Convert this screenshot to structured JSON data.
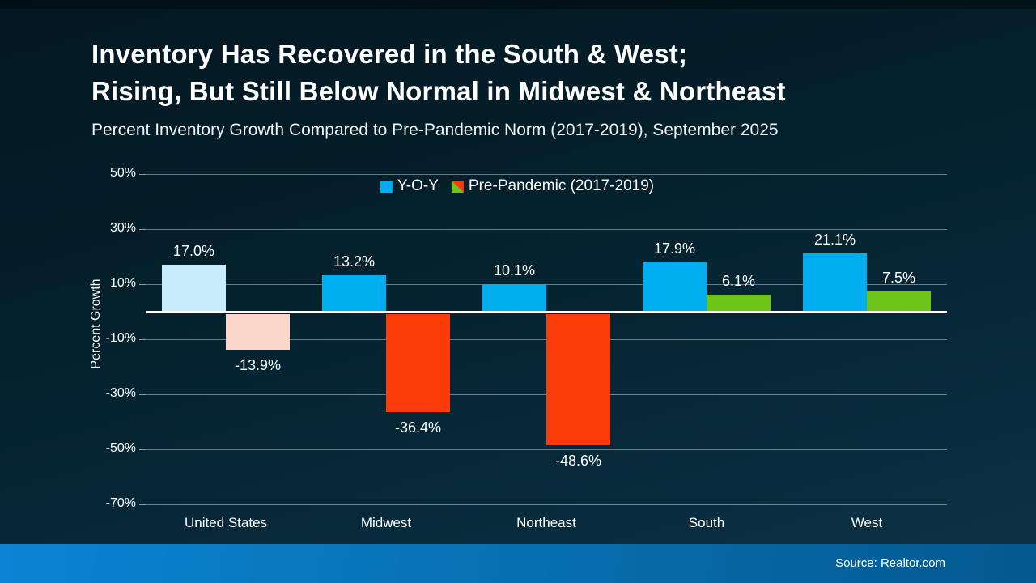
{
  "header": {
    "title_line1": "Inventory Has Recovered in the South & West;",
    "title_line2": "Rising, But Still Below Normal in Midwest & Northeast",
    "subtitle": "Percent Inventory Growth Compared to Pre-Pandemic Norm (2017-2019), September 2025"
  },
  "legend": [
    {
      "label": "Y-O-Y",
      "swatch": "solid",
      "color": "#00AEEF"
    },
    {
      "label": "Pre-Pandemic (2017-2019)",
      "swatch": "split",
      "color_positive": "#6FC41A",
      "color_negative": "#FB3B0A"
    }
  ],
  "chart_data": {
    "type": "bar",
    "title": "Inventory Has Recovered in the South & West; Rising, But Still Below Normal in Midwest & Northeast",
    "subtitle": "Percent Inventory Growth Compared to Pre-Pandemic Norm (2017-2019), September 2025",
    "categories": [
      "United States",
      "Midwest",
      "Northeast",
      "South",
      "West"
    ],
    "series": [
      {
        "name": "Y-O-Y",
        "values": [
          17.0,
          13.2,
          10.1,
          17.9,
          21.1
        ],
        "labels": [
          "17.0%",
          "13.2%",
          "10.1%",
          "17.9%",
          "21.1%"
        ],
        "colors": [
          "#C7ECFB",
          "#00AEEF",
          "#00AEEF",
          "#00AEEF",
          "#00AEEF"
        ]
      },
      {
        "name": "Pre-Pandemic (2017-2019)",
        "values": [
          -13.9,
          -36.4,
          -48.6,
          6.1,
          7.5
        ],
        "labels": [
          "-13.9%",
          "-36.4%",
          "-48.6%",
          "6.1%",
          "7.5%"
        ],
        "colors": [
          "#FDD6CB",
          "#FB3B0A",
          "#FB3B0A",
          "#6FC41A",
          "#6FC41A"
        ]
      }
    ],
    "ylabel": "Percent Growth",
    "xlabel": "",
    "yticks": [
      50,
      30,
      10,
      -10,
      -30,
      -50,
      -70
    ],
    "ytick_labels": [
      "50%",
      "30%",
      "10%",
      "-10%",
      "-30%",
      "-50%",
      "-70%"
    ],
    "ylim": [
      -70,
      50
    ],
    "grid": true,
    "zero_line_color": "#FFFFFF",
    "legend_position": "top-center"
  },
  "footer": {
    "source": "Source: Realtor.com"
  }
}
